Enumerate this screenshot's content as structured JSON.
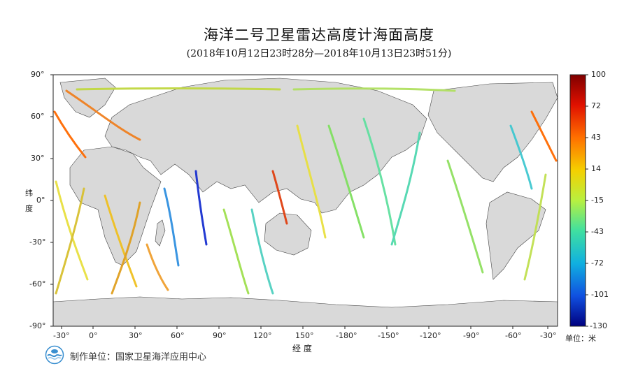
{
  "header": {
    "title": "海洋二号卫星雷达高度计海面高度",
    "subtitle": "(2018年10月12日23时28分—2018年10月13日23时51分)"
  },
  "map": {
    "lat_ticks": [
      "90°",
      "60°",
      "30°",
      "0°",
      "-30°",
      "-60°",
      "-90°"
    ],
    "lon_ticks": [
      "-30°",
      "0°",
      "30°",
      "60°",
      "90°",
      "120°",
      "150°",
      "-180°",
      "-150°",
      "-120°",
      "-90°",
      "-60°",
      "-30°"
    ],
    "x_axis_label": "经  度",
    "y_axis_label_1": "纬",
    "y_axis_label_2": "度",
    "land_color": "#d9d9d9",
    "ocean_color": "#ffffff"
  },
  "colorbar": {
    "ticks": [
      "100",
      "72",
      "43",
      "14",
      "-15",
      "-43",
      "-72",
      "-101",
      "-130"
    ],
    "unit": "单位：米",
    "min": -130,
    "max": 100
  },
  "footer": {
    "producer": "制作单位：国家卫星海洋应用中心"
  }
}
